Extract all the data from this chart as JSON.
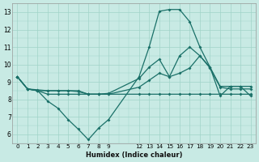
{
  "xlabel": "Humidex (Indice chaleur)",
  "bg_color": "#c8eae4",
  "grid_color": "#a0d4c8",
  "line_color": "#1a7068",
  "xlim": [
    -0.5,
    23.5
  ],
  "ylim": [
    5.5,
    13.5
  ],
  "xticks": [
    0,
    1,
    2,
    3,
    4,
    5,
    6,
    7,
    8,
    9,
    12,
    13,
    14,
    15,
    16,
    17,
    18,
    19,
    20,
    21,
    22,
    23
  ],
  "yticks": [
    6,
    7,
    8,
    9,
    10,
    11,
    12,
    13
  ],
  "line1_x": [
    0,
    1,
    2,
    3,
    4,
    5,
    6,
    7,
    8,
    9,
    12,
    13,
    14,
    15,
    16,
    17,
    18,
    19,
    20,
    21,
    22,
    23
  ],
  "line1_y": [
    9.3,
    8.6,
    8.5,
    7.9,
    7.5,
    6.85,
    6.3,
    5.7,
    6.35,
    6.85,
    9.3,
    11.0,
    13.05,
    13.15,
    13.15,
    12.45,
    11.0,
    9.85,
    8.2,
    8.75,
    8.75,
    8.2
  ],
  "line2_x": [
    0,
    1,
    2,
    3,
    4,
    5,
    6,
    7,
    8,
    9,
    12,
    13,
    14,
    15,
    16,
    17,
    18,
    19,
    20,
    21,
    22,
    23
  ],
  "line2_y": [
    9.3,
    8.6,
    8.5,
    8.5,
    8.5,
    8.5,
    8.5,
    8.3,
    8.3,
    8.35,
    9.2,
    9.85,
    10.3,
    9.3,
    10.5,
    11.0,
    10.5,
    9.85,
    8.75,
    8.75,
    8.75,
    8.75
  ],
  "line3_x": [
    0,
    1,
    2,
    3,
    4,
    5,
    6,
    7,
    8,
    9,
    12,
    13,
    14,
    15,
    16,
    17,
    18,
    19,
    20,
    21,
    22,
    23
  ],
  "line3_y": [
    9.3,
    8.6,
    8.55,
    8.5,
    8.5,
    8.5,
    8.45,
    8.3,
    8.3,
    8.3,
    8.7,
    9.1,
    9.5,
    9.3,
    9.5,
    9.8,
    10.5,
    9.8,
    8.7,
    8.6,
    8.6,
    8.6
  ],
  "line4_x": [
    0,
    1,
    2,
    3,
    4,
    5,
    6,
    7,
    8,
    9,
    12,
    13,
    14,
    15,
    16,
    17,
    18,
    19,
    20,
    21,
    22,
    23
  ],
  "line4_y": [
    9.3,
    8.6,
    8.5,
    8.3,
    8.3,
    8.3,
    8.3,
    8.3,
    8.3,
    8.3,
    8.3,
    8.3,
    8.3,
    8.3,
    8.3,
    8.3,
    8.3,
    8.3,
    8.3,
    8.3,
    8.3,
    8.3
  ]
}
